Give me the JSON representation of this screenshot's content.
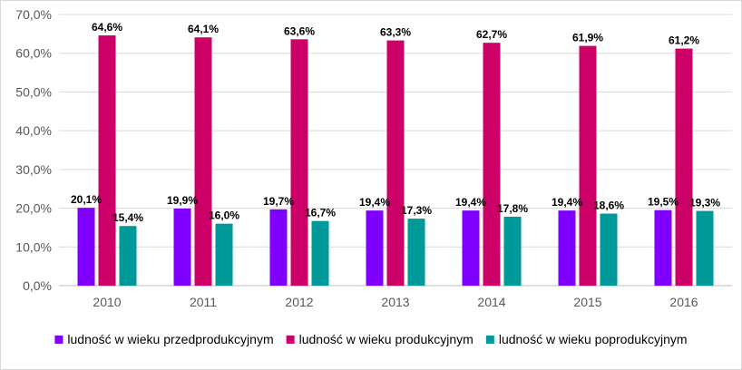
{
  "chart_data": {
    "type": "bar",
    "categories": [
      "2010",
      "2011",
      "2012",
      "2013",
      "2014",
      "2015",
      "2016"
    ],
    "series": [
      {
        "name": "ludność w wieku przedprodukcyjnym",
        "color": "#7f00ff",
        "values": [
          20.1,
          19.9,
          19.7,
          19.4,
          19.4,
          19.4,
          19.5
        ],
        "labels": [
          "20,1%",
          "19,9%",
          "19,7%",
          "19,4%",
          "19,4%",
          "19,4%",
          "19,5%"
        ]
      },
      {
        "name": "ludność w wieku produkcyjnym",
        "color": "#cc0066",
        "values": [
          64.6,
          64.1,
          63.6,
          63.3,
          62.7,
          61.9,
          61.2
        ],
        "labels": [
          "64,6%",
          "64,1%",
          "63,6%",
          "63,3%",
          "62,7%",
          "61,9%",
          "61,2%"
        ]
      },
      {
        "name": "ludność w wieku poprodukcyjnym",
        "color": "#009999",
        "values": [
          15.4,
          16.0,
          16.7,
          17.3,
          17.8,
          18.6,
          19.3
        ],
        "labels": [
          "15,4%",
          "16,0%",
          "16,7%",
          "17,3%",
          "17,8%",
          "18,6%",
          "19,3%"
        ]
      }
    ],
    "ylim": [
      0,
      70
    ],
    "yticks": [
      0,
      10,
      20,
      30,
      40,
      50,
      60,
      70
    ],
    "ytick_labels": [
      "0,0%",
      "10,0%",
      "20,0%",
      "30,0%",
      "40,0%",
      "50,0%",
      "60,0%",
      "70,0%"
    ],
    "grid": true,
    "legend_position": "bottom",
    "gridline_color": "#d9d9d9",
    "axis_color": "#bfbfbf"
  }
}
